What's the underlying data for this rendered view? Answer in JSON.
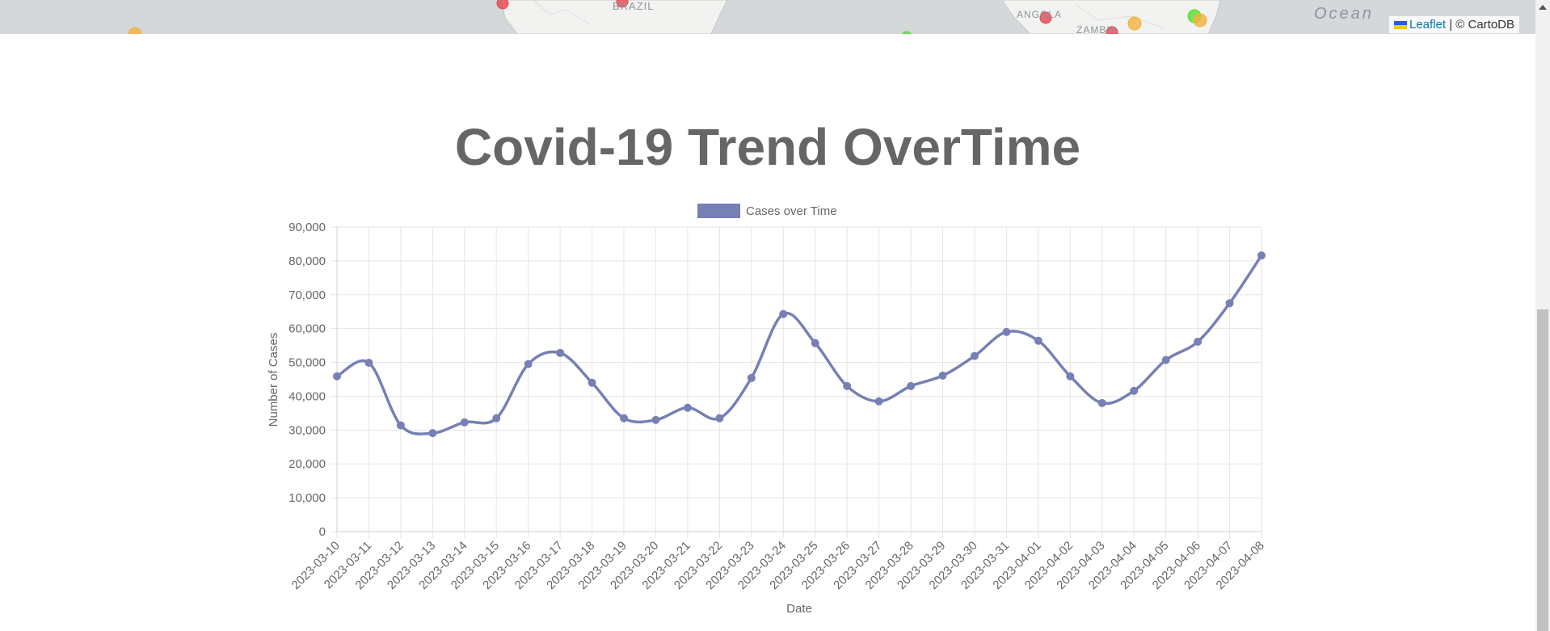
{
  "map": {
    "labels": [
      {
        "name": "map-label-brazil",
        "text": "BRAZIL"
      },
      {
        "name": "map-label-angola",
        "text": "ANGOLA"
      },
      {
        "name": "map-label-zambia",
        "text": "ZAMBIA"
      },
      {
        "name": "map-label-ocean",
        "text": "Ocean"
      }
    ],
    "attribution": {
      "link_text": "Leaflet",
      "rest": " | © CartoDB"
    },
    "marker_colors": {
      "red": "#e8434e",
      "orange": "#f3b13c",
      "green": "#54e02a"
    }
  },
  "page": {
    "title": "Covid-19 Trend OverTime"
  },
  "chart_data": {
    "type": "line",
    "title": "",
    "xlabel": "Date",
    "ylabel": "Number of Cases",
    "ylim": [
      0,
      90000
    ],
    "yticks": [
      "0",
      "10,000",
      "20,000",
      "30,000",
      "40,000",
      "50,000",
      "60,000",
      "70,000",
      "80,000",
      "90,000"
    ],
    "grid": true,
    "legend_position": "top-center",
    "categories": [
      "2023-03-10",
      "2023-03-11",
      "2023-03-12",
      "2023-03-13",
      "2023-03-14",
      "2023-03-15",
      "2023-03-16",
      "2023-03-17",
      "2023-03-18",
      "2023-03-19",
      "2023-03-20",
      "2023-03-21",
      "2023-03-22",
      "2023-03-23",
      "2023-03-24",
      "2023-03-25",
      "2023-03-26",
      "2023-03-27",
      "2023-03-28",
      "2023-03-29",
      "2023-03-30",
      "2023-03-31",
      "2023-04-01",
      "2023-04-02",
      "2023-04-03",
      "2023-04-04",
      "2023-04-05",
      "2023-04-06",
      "2023-04-07",
      "2023-04-08"
    ],
    "series": [
      {
        "name": "Cases over Time",
        "color": "#7780b4",
        "values": [
          45900,
          49900,
          31400,
          29100,
          32300,
          33500,
          49500,
          52800,
          44000,
          33500,
          33000,
          36600,
          33500,
          45400,
          64300,
          55700,
          43000,
          38500,
          43000,
          46100,
          51900,
          59000,
          56400,
          45900,
          38000,
          41600,
          50700,
          56100,
          67500,
          81600
        ]
      }
    ]
  }
}
